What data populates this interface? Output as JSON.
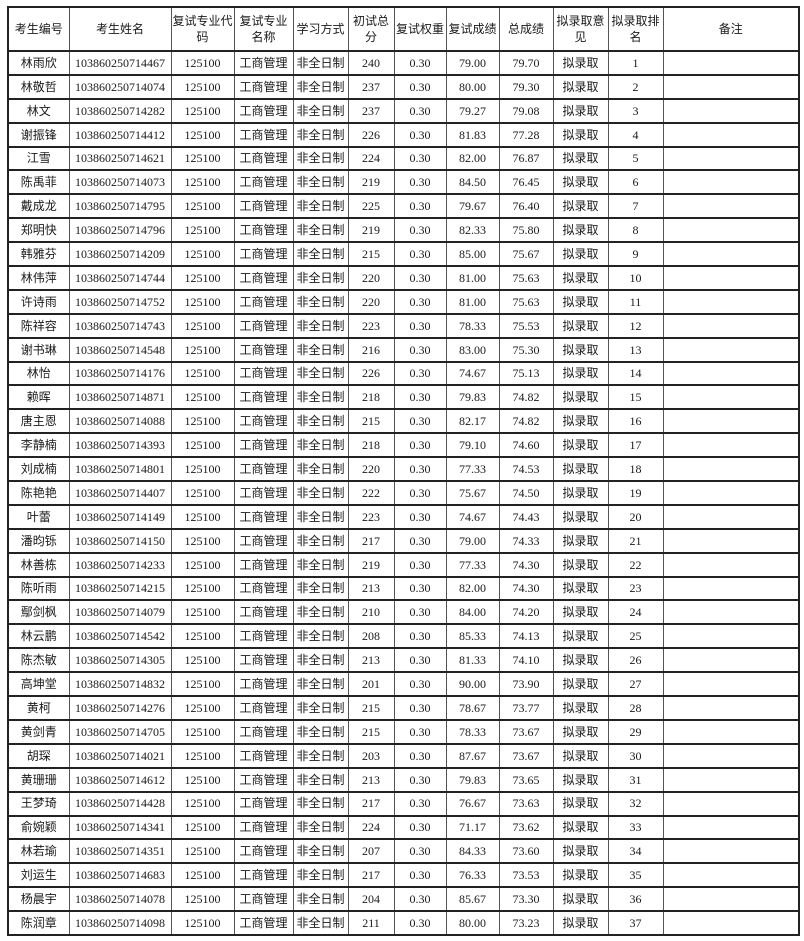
{
  "table": {
    "columns": [
      "考生编号",
      "考生姓名",
      "复试专业代码",
      "复试专业名称",
      "学习方式",
      "初试总分",
      "复试权重",
      "复试成绩",
      "总成绩",
      "拟录取意见",
      "拟录取排名",
      "备注"
    ],
    "column_keys": [
      "candidate-id",
      "candidate-name",
      "major-code",
      "major-name",
      "study-mode",
      "initial-total-score",
      "retest-weight",
      "retest-score",
      "total-score",
      "admission-opinion",
      "admission-rank",
      "remark"
    ],
    "rows": [
      [
        "林雨欣",
        "103860250714467",
        "125100",
        "工商管理",
        "非全日制",
        "240",
        "0.30",
        "79.00",
        "79.70",
        "拟录取",
        "1",
        ""
      ],
      [
        "林敬哲",
        "103860250714074",
        "125100",
        "工商管理",
        "非全日制",
        "237",
        "0.30",
        "80.00",
        "79.30",
        "拟录取",
        "2",
        ""
      ],
      [
        "林文",
        "103860250714282",
        "125100",
        "工商管理",
        "非全日制",
        "237",
        "0.30",
        "79.27",
        "79.08",
        "拟录取",
        "3",
        ""
      ],
      [
        "谢振锋",
        "103860250714412",
        "125100",
        "工商管理",
        "非全日制",
        "226",
        "0.30",
        "81.83",
        "77.28",
        "拟录取",
        "4",
        ""
      ],
      [
        "江雪",
        "103860250714621",
        "125100",
        "工商管理",
        "非全日制",
        "224",
        "0.30",
        "82.00",
        "76.87",
        "拟录取",
        "5",
        ""
      ],
      [
        "陈禹菲",
        "103860250714073",
        "125100",
        "工商管理",
        "非全日制",
        "219",
        "0.30",
        "84.50",
        "76.45",
        "拟录取",
        "6",
        ""
      ],
      [
        "戴成龙",
        "103860250714795",
        "125100",
        "工商管理",
        "非全日制",
        "225",
        "0.30",
        "79.67",
        "76.40",
        "拟录取",
        "7",
        ""
      ],
      [
        "郑明快",
        "103860250714796",
        "125100",
        "工商管理",
        "非全日制",
        "219",
        "0.30",
        "82.33",
        "75.80",
        "拟录取",
        "8",
        ""
      ],
      [
        "韩雅芬",
        "103860250714209",
        "125100",
        "工商管理",
        "非全日制",
        "215",
        "0.30",
        "85.00",
        "75.67",
        "拟录取",
        "9",
        ""
      ],
      [
        "林伟萍",
        "103860250714744",
        "125100",
        "工商管理",
        "非全日制",
        "220",
        "0.30",
        "81.00",
        "75.63",
        "拟录取",
        "10",
        ""
      ],
      [
        "许诗雨",
        "103860250714752",
        "125100",
        "工商管理",
        "非全日制",
        "220",
        "0.30",
        "81.00",
        "75.63",
        "拟录取",
        "11",
        ""
      ],
      [
        "陈祥容",
        "103860250714743",
        "125100",
        "工商管理",
        "非全日制",
        "223",
        "0.30",
        "78.33",
        "75.53",
        "拟录取",
        "12",
        ""
      ],
      [
        "谢书琳",
        "103860250714548",
        "125100",
        "工商管理",
        "非全日制",
        "216",
        "0.30",
        "83.00",
        "75.30",
        "拟录取",
        "13",
        ""
      ],
      [
        "林怡",
        "103860250714176",
        "125100",
        "工商管理",
        "非全日制",
        "226",
        "0.30",
        "74.67",
        "75.13",
        "拟录取",
        "14",
        ""
      ],
      [
        "赖晖",
        "103860250714871",
        "125100",
        "工商管理",
        "非全日制",
        "218",
        "0.30",
        "79.83",
        "74.82",
        "拟录取",
        "15",
        ""
      ],
      [
        "唐主恩",
        "103860250714088",
        "125100",
        "工商管理",
        "非全日制",
        "215",
        "0.30",
        "82.17",
        "74.82",
        "拟录取",
        "16",
        ""
      ],
      [
        "李静楠",
        "103860250714393",
        "125100",
        "工商管理",
        "非全日制",
        "218",
        "0.30",
        "79.10",
        "74.60",
        "拟录取",
        "17",
        ""
      ],
      [
        "刘成楠",
        "103860250714801",
        "125100",
        "工商管理",
        "非全日制",
        "220",
        "0.30",
        "77.33",
        "74.53",
        "拟录取",
        "18",
        ""
      ],
      [
        "陈艳艳",
        "103860250714407",
        "125100",
        "工商管理",
        "非全日制",
        "222",
        "0.30",
        "75.67",
        "74.50",
        "拟录取",
        "19",
        ""
      ],
      [
        "叶蕾",
        "103860250714149",
        "125100",
        "工商管理",
        "非全日制",
        "223",
        "0.30",
        "74.67",
        "74.43",
        "拟录取",
        "20",
        ""
      ],
      [
        "潘昀铄",
        "103860250714150",
        "125100",
        "工商管理",
        "非全日制",
        "217",
        "0.30",
        "79.00",
        "74.33",
        "拟录取",
        "21",
        ""
      ],
      [
        "林善栋",
        "103860250714233",
        "125100",
        "工商管理",
        "非全日制",
        "219",
        "0.30",
        "77.33",
        "74.30",
        "拟录取",
        "22",
        ""
      ],
      [
        "陈听雨",
        "103860250714215",
        "125100",
        "工商管理",
        "非全日制",
        "213",
        "0.30",
        "82.00",
        "74.30",
        "拟录取",
        "23",
        ""
      ],
      [
        "鄢剑枫",
        "103860250714079",
        "125100",
        "工商管理",
        "非全日制",
        "210",
        "0.30",
        "84.00",
        "74.20",
        "拟录取",
        "24",
        ""
      ],
      [
        "林云鹏",
        "103860250714542",
        "125100",
        "工商管理",
        "非全日制",
        "208",
        "0.30",
        "85.33",
        "74.13",
        "拟录取",
        "25",
        ""
      ],
      [
        "陈杰敏",
        "103860250714305",
        "125100",
        "工商管理",
        "非全日制",
        "213",
        "0.30",
        "81.33",
        "74.10",
        "拟录取",
        "26",
        ""
      ],
      [
        "高坤堂",
        "103860250714832",
        "125100",
        "工商管理",
        "非全日制",
        "201",
        "0.30",
        "90.00",
        "73.90",
        "拟录取",
        "27",
        ""
      ],
      [
        "黄柯",
        "103860250714276",
        "125100",
        "工商管理",
        "非全日制",
        "215",
        "0.30",
        "78.67",
        "73.77",
        "拟录取",
        "28",
        ""
      ],
      [
        "黄剑青",
        "103860250714705",
        "125100",
        "工商管理",
        "非全日制",
        "215",
        "0.30",
        "78.33",
        "73.67",
        "拟录取",
        "29",
        ""
      ],
      [
        "胡琛",
        "103860250714021",
        "125100",
        "工商管理",
        "非全日制",
        "203",
        "0.30",
        "87.67",
        "73.67",
        "拟录取",
        "30",
        ""
      ],
      [
        "黄珊珊",
        "103860250714612",
        "125100",
        "工商管理",
        "非全日制",
        "213",
        "0.30",
        "79.83",
        "73.65",
        "拟录取",
        "31",
        ""
      ],
      [
        "王梦琦",
        "103860250714428",
        "125100",
        "工商管理",
        "非全日制",
        "217",
        "0.30",
        "76.67",
        "73.63",
        "拟录取",
        "32",
        ""
      ],
      [
        "俞婉颖",
        "103860250714341",
        "125100",
        "工商管理",
        "非全日制",
        "224",
        "0.30",
        "71.17",
        "73.62",
        "拟录取",
        "33",
        ""
      ],
      [
        "林若瑜",
        "103860250714351",
        "125100",
        "工商管理",
        "非全日制",
        "207",
        "0.30",
        "84.33",
        "73.60",
        "拟录取",
        "34",
        ""
      ],
      [
        "刘运生",
        "103860250714683",
        "125100",
        "工商管理",
        "非全日制",
        "217",
        "0.30",
        "76.33",
        "73.53",
        "拟录取",
        "35",
        ""
      ],
      [
        "杨晨宇",
        "103860250714078",
        "125100",
        "工商管理",
        "非全日制",
        "204",
        "0.30",
        "85.67",
        "73.30",
        "拟录取",
        "36",
        ""
      ],
      [
        "陈润章",
        "103860250714098",
        "125100",
        "工商管理",
        "非全日制",
        "211",
        "0.30",
        "80.00",
        "73.23",
        "拟录取",
        "37",
        ""
      ]
    ]
  }
}
